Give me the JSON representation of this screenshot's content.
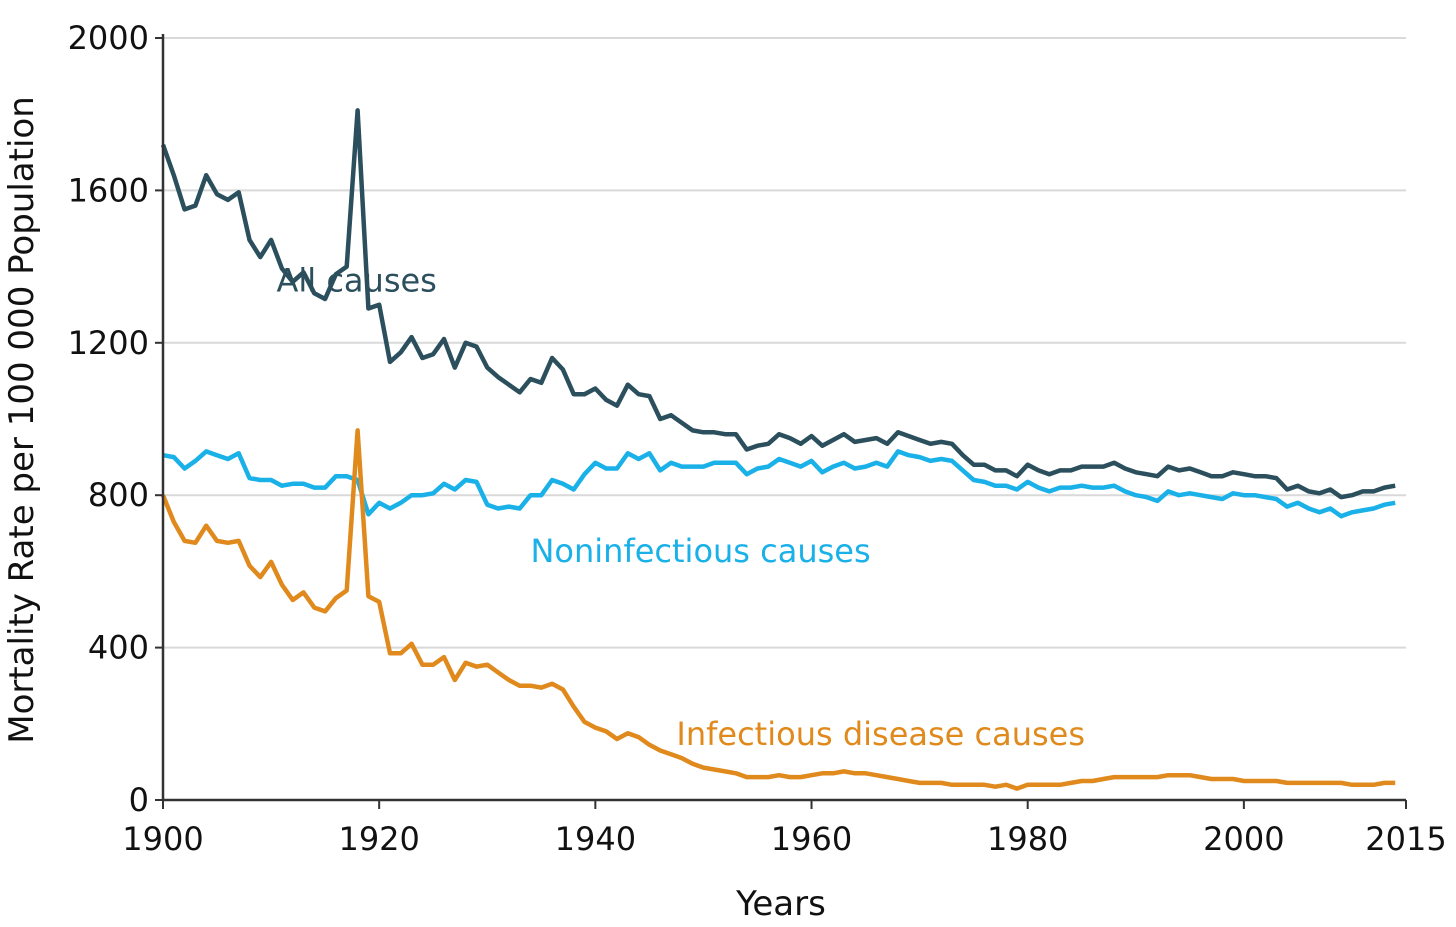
{
  "chart_data": {
    "type": "line",
    "title": "",
    "xlabel": "Years",
    "ylabel": "Mortality Rate per 100 000 Population",
    "xlim": [
      1900,
      2015
    ],
    "ylim": [
      0,
      2000
    ],
    "xticks": [
      "1900",
      "1920",
      "1940",
      "1960",
      "1980",
      "2000",
      "2015"
    ],
    "yticks": [
      "0",
      "400",
      "800",
      "1200",
      "1600",
      "2000"
    ],
    "grid": "horizontal",
    "legend": "inline labels",
    "x": [
      1900,
      1901,
      1902,
      1903,
      1904,
      1905,
      1906,
      1907,
      1908,
      1909,
      1910,
      1911,
      1912,
      1913,
      1914,
      1915,
      1916,
      1917,
      1918,
      1919,
      1920,
      1921,
      1922,
      1923,
      1924,
      1925,
      1926,
      1927,
      1928,
      1929,
      1930,
      1931,
      1932,
      1933,
      1934,
      1935,
      1936,
      1937,
      1938,
      1939,
      1940,
      1941,
      1942,
      1943,
      1944,
      1945,
      1946,
      1947,
      1948,
      1949,
      1950,
      1951,
      1952,
      1953,
      1954,
      1955,
      1956,
      1957,
      1958,
      1959,
      1960,
      1961,
      1962,
      1963,
      1964,
      1965,
      1966,
      1967,
      1968,
      1969,
      1970,
      1971,
      1972,
      1973,
      1974,
      1975,
      1976,
      1977,
      1978,
      1979,
      1980,
      1981,
      1982,
      1983,
      1984,
      1985,
      1986,
      1987,
      1988,
      1989,
      1990,
      1991,
      1992,
      1993,
      1994,
      1995,
      1996,
      1997,
      1998,
      1999,
      2000,
      2001,
      2002,
      2003,
      2004,
      2005,
      2006,
      2007,
      2008,
      2009,
      2010,
      2011,
      2012,
      2013,
      2014
    ],
    "series": [
      {
        "name": "All causes",
        "color": "#2b4f5c",
        "values": [
          1720,
          1640,
          1550,
          1560,
          1640,
          1590,
          1575,
          1595,
          1470,
          1425,
          1470,
          1395,
          1360,
          1385,
          1330,
          1315,
          1380,
          1400,
          1810,
          1290,
          1300,
          1150,
          1175,
          1215,
          1160,
          1170,
          1210,
          1135,
          1200,
          1190,
          1135,
          1110,
          1090,
          1070,
          1105,
          1095,
          1160,
          1130,
          1065,
          1065,
          1080,
          1050,
          1035,
          1090,
          1065,
          1060,
          1000,
          1010,
          990,
          970,
          965,
          965,
          960,
          960,
          920,
          930,
          935,
          960,
          950,
          935,
          955,
          930,
          945,
          960,
          940,
          945,
          950,
          935,
          965,
          955,
          945,
          935,
          940,
          935,
          905,
          880,
          880,
          865,
          865,
          850,
          880,
          865,
          855,
          865,
          865,
          875,
          875,
          875,
          885,
          870,
          860,
          855,
          850,
          875,
          865,
          870,
          860,
          850,
          850,
          860,
          855,
          850,
          850,
          845,
          815,
          825,
          810,
          805,
          815,
          795,
          800,
          810,
          810,
          820,
          825
        ],
        "label_at": [
          1910.5,
          1335
        ]
      },
      {
        "name": "Noninfectious causes",
        "color": "#1ab0e8",
        "values": [
          905,
          900,
          870,
          890,
          915,
          905,
          895,
          910,
          845,
          840,
          840,
          825,
          830,
          830,
          820,
          820,
          850,
          850,
          840,
          750,
          780,
          765,
          780,
          800,
          800,
          805,
          830,
          815,
          840,
          835,
          775,
          765,
          770,
          765,
          800,
          800,
          840,
          830,
          815,
          855,
          885,
          870,
          870,
          910,
          895,
          910,
          865,
          885,
          875,
          875,
          875,
          885,
          885,
          885,
          855,
          870,
          875,
          895,
          885,
          875,
          890,
          860,
          875,
          885,
          870,
          875,
          885,
          875,
          915,
          905,
          900,
          890,
          895,
          890,
          865,
          840,
          835,
          825,
          825,
          815,
          835,
          820,
          810,
          820,
          820,
          825,
          820,
          820,
          825,
          810,
          800,
          795,
          785,
          810,
          800,
          805,
          800,
          795,
          790,
          805,
          800,
          800,
          795,
          790,
          770,
          780,
          765,
          755,
          765,
          745,
          755,
          760,
          765,
          775,
          780
        ],
        "label_at": [
          1934,
          625
        ]
      },
      {
        "name": "Infectious disease causes",
        "color": "#e08a1e",
        "values": [
          800,
          730,
          680,
          675,
          720,
          680,
          675,
          680,
          615,
          585,
          625,
          565,
          525,
          545,
          505,
          495,
          530,
          550,
          970,
          535,
          520,
          385,
          385,
          410,
          355,
          355,
          375,
          315,
          360,
          350,
          355,
          335,
          315,
          300,
          300,
          295,
          305,
          290,
          245,
          205,
          190,
          180,
          160,
          175,
          165,
          145,
          130,
          120,
          110,
          95,
          85,
          80,
          75,
          70,
          60,
          60,
          60,
          65,
          60,
          60,
          65,
          70,
          70,
          75,
          70,
          70,
          65,
          60,
          55,
          50,
          45,
          45,
          45,
          40,
          40,
          40,
          40,
          35,
          40,
          30,
          40,
          40,
          40,
          40,
          45,
          50,
          50,
          55,
          60,
          60,
          60,
          60,
          60,
          65,
          65,
          65,
          60,
          55,
          55,
          55,
          50,
          50,
          50,
          50,
          45,
          45,
          45,
          45,
          45,
          45,
          40,
          40,
          40,
          45,
          45
        ],
        "label_at": [
          1947.5,
          145
        ]
      }
    ]
  }
}
